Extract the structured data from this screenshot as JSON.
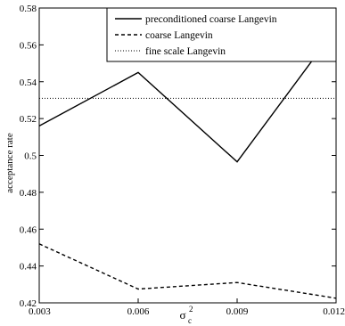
{
  "chart_data": {
    "type": "line",
    "xlabel_base": "σ",
    "xlabel_sub": "c",
    "xlabel_sup": "2",
    "ylabel": "acceptance rate",
    "xlim": [
      0.003,
      0.012
    ],
    "ylim": [
      0.42,
      0.58
    ],
    "x_ticks": [
      0.003,
      0.006,
      0.009,
      0.012
    ],
    "x_tick_labels": [
      "0.003",
      "0.006",
      "0.009",
      "0.012"
    ],
    "y_ticks": [
      0.42,
      0.44,
      0.46,
      0.48,
      0.5,
      0.52,
      0.54,
      0.56,
      0.58
    ],
    "y_tick_labels": [
      "0.42",
      "0.44",
      "0.46",
      "0.48",
      "0.5",
      "0.52",
      "0.54",
      "0.56",
      "0.58"
    ],
    "grid": false,
    "legend_position": "top-right",
    "x": [
      0.003,
      0.006,
      0.009,
      0.012
    ],
    "series": [
      {
        "name": "preconditioned coarse Langevin",
        "style": "solid",
        "values": [
          0.516,
          0.545,
          0.4965,
          0.569
        ]
      },
      {
        "name": "coarse Langevin",
        "style": "dashed",
        "values": [
          0.452,
          0.4275,
          0.431,
          0.4225
        ]
      },
      {
        "name": "fine scale Langevin",
        "style": "dotted",
        "values": [
          0.531,
          0.531,
          0.531,
          0.531
        ]
      }
    ]
  }
}
